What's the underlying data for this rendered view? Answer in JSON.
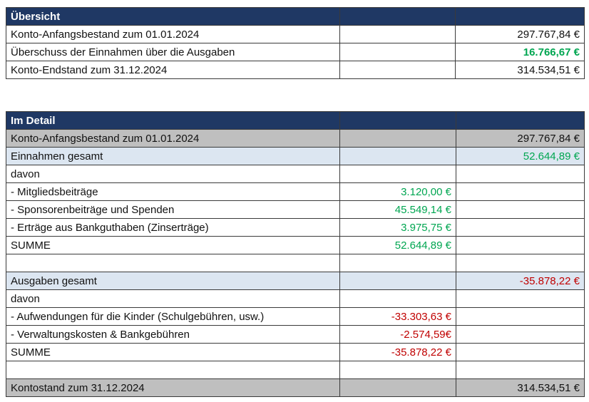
{
  "overview": {
    "title": "Übersicht",
    "rows": [
      {
        "label": "Konto-Anfangsbestand zum 01.01.2024",
        "total": "297.767,84 €"
      },
      {
        "label": "Überschuss der Einnahmen über die Ausgaben",
        "total": "16.766,67 €"
      },
      {
        "label": "Konto-Endstand zum 31.12.2024",
        "total": "314.534,51 €"
      }
    ]
  },
  "detail": {
    "title": "Im Detail",
    "rows": [
      {
        "label": "Konto-Anfangsbestand zum 01.01.2024",
        "total": "297.767,84 €"
      },
      {
        "label": "Einnahmen gesamt",
        "total": "52.644,89 €"
      },
      {
        "label": "davon"
      },
      {
        "label": "- Mitgliedsbeiträge",
        "amount": "3.120,00 €"
      },
      {
        "label": "- Sponsorenbeiträge und Spenden",
        "amount": "45.549,14 €"
      },
      {
        "label": "- Erträge aus Bankguthaben (Zinserträge)",
        "amount": "3.975,75 €"
      },
      {
        "label": "SUMME",
        "amount": "52.644,89 €"
      },
      {
        "label": "Ausgaben gesamt",
        "total": "-35.878,22 €"
      },
      {
        "label": "davon"
      },
      {
        "label": "- Aufwendungen für die Kinder (Schulgebühren, usw.)",
        "amount": "-33.303,63 €"
      },
      {
        "label": "- Verwaltungskosten & Bankgebühren",
        "amount": "-2.574,59€"
      },
      {
        "label": "SUMME",
        "amount": "-35.878,22 €"
      },
      {
        "label": "Kontostand zum 31.12.2024",
        "total": "314.534,51 €"
      }
    ]
  }
}
